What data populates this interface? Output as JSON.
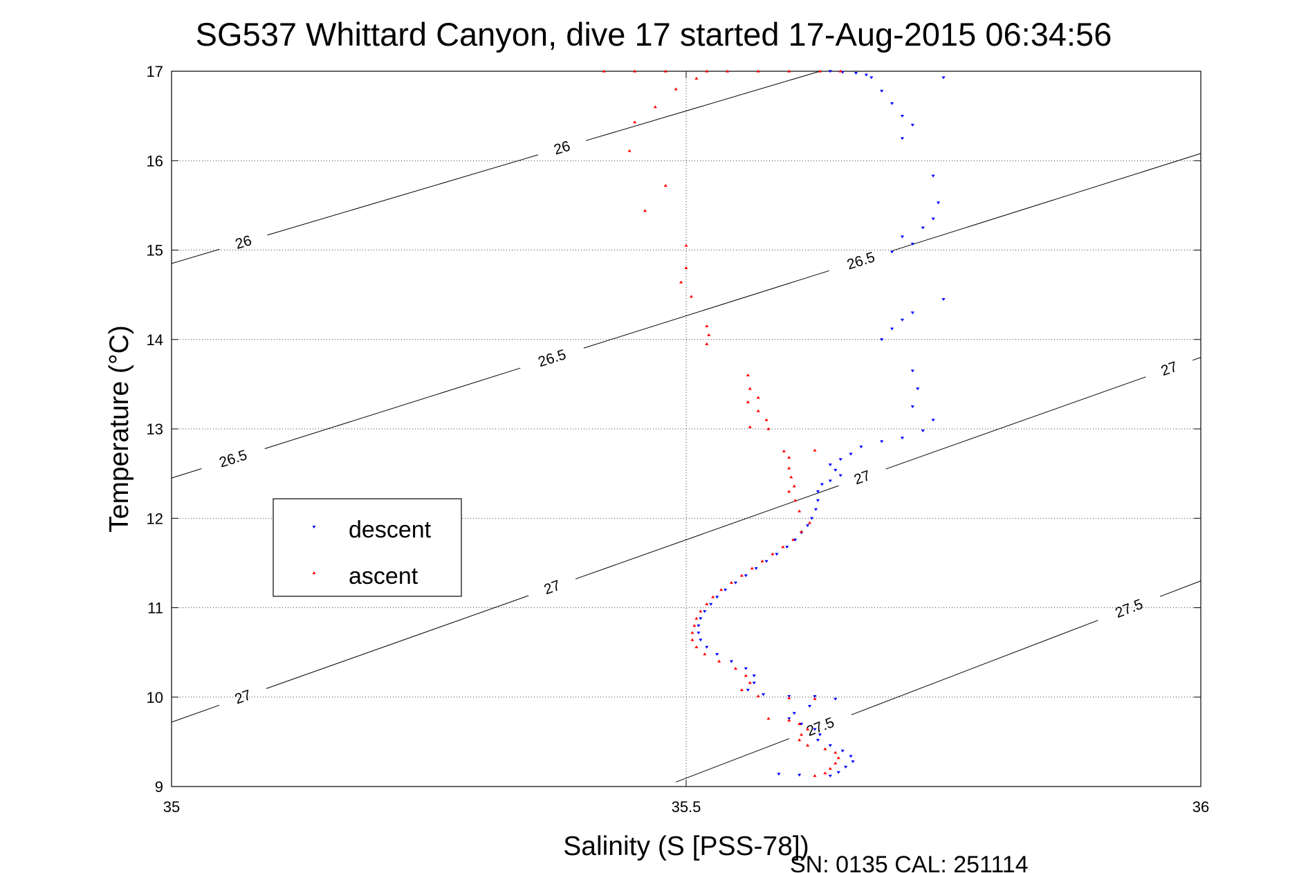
{
  "chart_data": {
    "type": "scatter",
    "title": "SG537 Whittard Canyon, dive 17 started 17-Aug-2015 06:34:56",
    "xlabel": "Salinity (S [PSS-78])",
    "ylabel": "Temperature (°C)",
    "xlim": [
      35,
      36
    ],
    "ylim": [
      9,
      17
    ],
    "xticks": [
      "35",
      "35.5",
      "36"
    ],
    "xtick_values": [
      35,
      35.5,
      36
    ],
    "yticks": [
      "9",
      "10",
      "11",
      "12",
      "13",
      "14",
      "15",
      "16",
      "17"
    ],
    "ytick_values": [
      9,
      10,
      11,
      12,
      13,
      14,
      15,
      16,
      17
    ],
    "grid": true,
    "legend_position": "middle-left",
    "footer": "SN: 0135  CAL: 251114",
    "contours": [
      {
        "label": "26",
        "x": [
          35,
          35.63
        ],
        "y": [
          14.85,
          17.0
        ],
        "label_points": [
          [
            35.07,
            15.08
          ],
          [
            35.38,
            16.12
          ]
        ]
      },
      {
        "label": "26.5",
        "x": [
          35,
          36
        ],
        "y": [
          12.45,
          16.08
        ],
        "label_points": [
          [
            35.06,
            12.66
          ],
          [
            35.37,
            13.78
          ],
          [
            35.67,
            14.87
          ]
        ]
      },
      {
        "label": "27",
        "x": [
          35,
          36
        ],
        "y": [
          9.72,
          13.8
        ],
        "label_points": [
          [
            35.07,
            9.98
          ],
          [
            35.37,
            11.22
          ],
          [
            35.67,
            12.49
          ],
          [
            35.97,
            13.65
          ]
        ]
      },
      {
        "label": "27.5",
        "x": [
          35.49,
          36
        ],
        "y": [
          9.05,
          11.3
        ],
        "label_points": [
          [
            35.63,
            9.68
          ],
          [
            35.93,
            11.0
          ]
        ]
      }
    ],
    "series": [
      {
        "name": "descent",
        "color": "#0000ff",
        "marker": "triangle-down",
        "points": [
          [
            35.64,
            17.0
          ],
          [
            35.652,
            16.99
          ],
          [
            35.665,
            16.98
          ],
          [
            35.675,
            16.96
          ],
          [
            35.68,
            16.93
          ],
          [
            35.75,
            16.93
          ],
          [
            35.69,
            16.78
          ],
          [
            35.7,
            16.64
          ],
          [
            35.71,
            16.5
          ],
          [
            35.72,
            16.4
          ],
          [
            35.71,
            16.25
          ],
          [
            35.74,
            15.83
          ],
          [
            35.745,
            15.53
          ],
          [
            35.74,
            15.35
          ],
          [
            35.73,
            15.25
          ],
          [
            35.71,
            15.15
          ],
          [
            35.72,
            15.07
          ],
          [
            35.7,
            14.98
          ],
          [
            35.75,
            14.45
          ],
          [
            35.72,
            14.3
          ],
          [
            35.71,
            14.22
          ],
          [
            35.7,
            14.12
          ],
          [
            35.69,
            14.0
          ],
          [
            35.72,
            13.65
          ],
          [
            35.725,
            13.45
          ],
          [
            35.72,
            13.25
          ],
          [
            35.74,
            13.1
          ],
          [
            35.73,
            12.98
          ],
          [
            35.71,
            12.9
          ],
          [
            35.69,
            12.86
          ],
          [
            35.67,
            12.8
          ],
          [
            35.66,
            12.72
          ],
          [
            35.65,
            12.66
          ],
          [
            35.64,
            12.6
          ],
          [
            35.645,
            12.54
          ],
          [
            35.65,
            12.48
          ],
          [
            35.64,
            12.42
          ],
          [
            35.632,
            12.38
          ],
          [
            35.628,
            12.3
          ],
          [
            35.628,
            12.2
          ],
          [
            35.626,
            12.1
          ],
          [
            35.622,
            12.0
          ],
          [
            35.618,
            11.92
          ],
          [
            35.612,
            11.84
          ],
          [
            35.606,
            11.76
          ],
          [
            35.598,
            11.68
          ],
          [
            35.588,
            11.6
          ],
          [
            35.578,
            11.52
          ],
          [
            35.568,
            11.44
          ],
          [
            35.558,
            11.36
          ],
          [
            35.548,
            11.28
          ],
          [
            35.538,
            11.2
          ],
          [
            35.53,
            11.12
          ],
          [
            35.524,
            11.04
          ],
          [
            35.518,
            10.96
          ],
          [
            35.514,
            10.88
          ],
          [
            35.512,
            10.8
          ],
          [
            35.512,
            10.72
          ],
          [
            35.514,
            10.64
          ],
          [
            35.52,
            10.56
          ],
          [
            35.53,
            10.48
          ],
          [
            35.544,
            10.4
          ],
          [
            35.558,
            10.32
          ],
          [
            35.566,
            10.24
          ],
          [
            35.566,
            10.16
          ],
          [
            35.56,
            10.08
          ],
          [
            35.575,
            10.03
          ],
          [
            35.6,
            10.01
          ],
          [
            35.625,
            10.01
          ],
          [
            35.645,
            9.98
          ],
          [
            35.62,
            9.9
          ],
          [
            35.605,
            9.82
          ],
          [
            35.6,
            9.76
          ],
          [
            35.612,
            9.7
          ],
          [
            35.625,
            9.64
          ],
          [
            35.63,
            9.58
          ],
          [
            35.628,
            9.52
          ],
          [
            35.64,
            9.46
          ],
          [
            35.652,
            9.4
          ],
          [
            35.66,
            9.34
          ],
          [
            35.662,
            9.28
          ],
          [
            35.655,
            9.22
          ],
          [
            35.648,
            9.16
          ],
          [
            35.64,
            9.12
          ],
          [
            35.61,
            9.13
          ],
          [
            35.59,
            9.14
          ]
        ]
      },
      {
        "name": "ascent",
        "color": "#ff0000",
        "marker": "triangle-up",
        "points": [
          [
            35.42,
            17.0
          ],
          [
            35.45,
            17.0
          ],
          [
            35.48,
            17.0
          ],
          [
            35.52,
            17.0
          ],
          [
            35.54,
            17.0
          ],
          [
            35.57,
            17.0
          ],
          [
            35.6,
            17.0
          ],
          [
            35.63,
            17.0
          ],
          [
            35.65,
            17.0
          ],
          [
            35.51,
            16.92
          ],
          [
            35.49,
            16.8
          ],
          [
            35.47,
            16.6
          ],
          [
            35.45,
            16.43
          ],
          [
            35.445,
            16.11
          ],
          [
            35.48,
            15.72
          ],
          [
            35.46,
            15.44
          ],
          [
            35.5,
            15.05
          ],
          [
            35.5,
            14.8
          ],
          [
            35.495,
            14.64
          ],
          [
            35.505,
            14.48
          ],
          [
            35.52,
            14.15
          ],
          [
            35.522,
            14.05
          ],
          [
            35.52,
            13.95
          ],
          [
            35.56,
            13.6
          ],
          [
            35.562,
            13.45
          ],
          [
            35.57,
            13.35
          ],
          [
            35.56,
            13.3
          ],
          [
            35.57,
            13.2
          ],
          [
            35.578,
            13.1
          ],
          [
            35.562,
            13.02
          ],
          [
            35.58,
            13.0
          ],
          [
            35.595,
            12.75
          ],
          [
            35.625,
            12.76
          ],
          [
            35.6,
            12.68
          ],
          [
            35.6,
            12.56
          ],
          [
            35.602,
            12.46
          ],
          [
            35.605,
            12.36
          ],
          [
            35.6,
            12.3
          ],
          [
            35.606,
            12.2
          ],
          [
            35.61,
            12.08
          ],
          [
            35.62,
            11.95
          ],
          [
            35.612,
            11.85
          ],
          [
            35.604,
            11.76
          ],
          [
            35.594,
            11.68
          ],
          [
            35.584,
            11.6
          ],
          [
            35.574,
            11.52
          ],
          [
            35.564,
            11.44
          ],
          [
            35.554,
            11.36
          ],
          [
            35.544,
            11.28
          ],
          [
            35.534,
            11.2
          ],
          [
            35.526,
            11.12
          ],
          [
            35.52,
            11.04
          ],
          [
            35.514,
            10.96
          ],
          [
            35.51,
            10.88
          ],
          [
            35.508,
            10.8
          ],
          [
            35.506,
            10.72
          ],
          [
            35.506,
            10.64
          ],
          [
            35.51,
            10.56
          ],
          [
            35.518,
            10.48
          ],
          [
            35.532,
            10.4
          ],
          [
            35.548,
            10.32
          ],
          [
            35.558,
            10.24
          ],
          [
            35.562,
            10.16
          ],
          [
            35.554,
            10.08
          ],
          [
            35.57,
            10.01
          ],
          [
            35.6,
            9.99
          ],
          [
            35.625,
            9.98
          ],
          [
            35.58,
            9.76
          ],
          [
            35.6,
            9.74
          ],
          [
            35.61,
            9.7
          ],
          [
            35.618,
            9.64
          ],
          [
            35.612,
            9.58
          ],
          [
            35.61,
            9.52
          ],
          [
            35.618,
            9.46
          ],
          [
            35.635,
            9.42
          ],
          [
            35.645,
            9.38
          ],
          [
            35.648,
            9.32
          ],
          [
            35.645,
            9.26
          ],
          [
            35.64,
            9.2
          ],
          [
            35.635,
            9.15
          ],
          [
            35.625,
            9.12
          ]
        ]
      }
    ]
  }
}
